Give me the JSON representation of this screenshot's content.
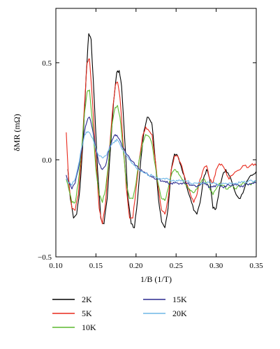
{
  "chart_data": {
    "type": "line",
    "title": "",
    "xlabel": "1/B (1/T)",
    "ylabel": "δMR (mΩ)",
    "xlim": [
      0.1,
      0.35
    ],
    "ylim": [
      -0.5,
      0.78
    ],
    "x_ticks": [
      0.1,
      0.15,
      0.2,
      0.25,
      0.3,
      0.35
    ],
    "x_tick_labels": [
      "0.10",
      "0.15",
      "0.20",
      "0.25",
      "0.30",
      "0.35"
    ],
    "y_ticks": [
      -0.5,
      0.0,
      0.5
    ],
    "y_tick_labels": [
      "−0.5",
      "0.0",
      "0.5"
    ],
    "grid": false,
    "legend_position": "below",
    "series": [
      {
        "name": "2K",
        "color": "#000000",
        "x": [
          0.115,
          0.118,
          0.122,
          0.126,
          0.13,
          0.134,
          0.138,
          0.141,
          0.144,
          0.148,
          0.152,
          0.156,
          0.16,
          0.164,
          0.168,
          0.172,
          0.176,
          0.179,
          0.182,
          0.186,
          0.19,
          0.194,
          0.198,
          0.202,
          0.206,
          0.21,
          0.214,
          0.218,
          0.22,
          0.224,
          0.228,
          0.232,
          0.236,
          0.24,
          0.244,
          0.248,
          0.252,
          0.256,
          0.26,
          0.264,
          0.268,
          0.272,
          0.276,
          0.28,
          0.284,
          0.288,
          0.292,
          0.296,
          0.3,
          0.304,
          0.308,
          0.312,
          0.316,
          0.32,
          0.325,
          0.33,
          0.335,
          0.34,
          0.345,
          0.35
        ],
        "y": [
          -0.05,
          -0.2,
          -0.3,
          -0.28,
          -0.15,
          0.1,
          0.45,
          0.65,
          0.62,
          0.3,
          -0.05,
          -0.3,
          -0.33,
          -0.2,
          0.05,
          0.3,
          0.45,
          0.46,
          0.38,
          0.1,
          -0.2,
          -0.33,
          -0.35,
          -0.2,
          0.0,
          0.15,
          0.22,
          0.2,
          0.18,
          0.0,
          -0.2,
          -0.32,
          -0.35,
          -0.25,
          -0.05,
          0.03,
          0.02,
          -0.03,
          -0.08,
          -0.15,
          -0.2,
          -0.26,
          -0.28,
          -0.22,
          -0.1,
          -0.05,
          -0.1,
          -0.25,
          -0.25,
          -0.15,
          -0.08,
          -0.05,
          -0.08,
          -0.12,
          -0.18,
          -0.2,
          -0.15,
          -0.1,
          -0.08,
          -0.06
        ]
      },
      {
        "name": "5K",
        "color": "#e8291c",
        "x": [
          0.113,
          0.116,
          0.12,
          0.124,
          0.128,
          0.132,
          0.136,
          0.139,
          0.142,
          0.146,
          0.15,
          0.154,
          0.158,
          0.162,
          0.166,
          0.17,
          0.174,
          0.177,
          0.18,
          0.184,
          0.188,
          0.192,
          0.196,
          0.2,
          0.204,
          0.208,
          0.212,
          0.216,
          0.22,
          0.224,
          0.228,
          0.232,
          0.236,
          0.24,
          0.244,
          0.248,
          0.252,
          0.256,
          0.26,
          0.264,
          0.268,
          0.272,
          0.276,
          0.28,
          0.284,
          0.288,
          0.292,
          0.296,
          0.3,
          0.304,
          0.308,
          0.312,
          0.316,
          0.32,
          0.325,
          0.33,
          0.335,
          0.34,
          0.345,
          0.35
        ],
        "y": [
          0.14,
          -0.12,
          -0.25,
          -0.26,
          -0.18,
          0.02,
          0.3,
          0.5,
          0.52,
          0.28,
          0.0,
          -0.25,
          -0.33,
          -0.22,
          0.0,
          0.22,
          0.38,
          0.4,
          0.32,
          0.08,
          -0.15,
          -0.3,
          -0.3,
          -0.15,
          0.0,
          0.12,
          0.17,
          0.15,
          0.13,
          0.0,
          -0.15,
          -0.26,
          -0.28,
          -0.2,
          -0.05,
          0.02,
          0.02,
          -0.02,
          -0.08,
          -0.13,
          -0.18,
          -0.22,
          -0.18,
          -0.1,
          -0.05,
          -0.03,
          -0.1,
          -0.12,
          -0.05,
          -0.02,
          -0.03,
          -0.06,
          -0.1,
          -0.08,
          -0.06,
          -0.05,
          -0.03,
          -0.04,
          -0.02,
          -0.03
        ]
      },
      {
        "name": "10K",
        "color": "#5cb82e",
        "x": [
          0.113,
          0.116,
          0.12,
          0.124,
          0.128,
          0.132,
          0.136,
          0.139,
          0.142,
          0.146,
          0.15,
          0.154,
          0.158,
          0.162,
          0.166,
          0.17,
          0.174,
          0.177,
          0.18,
          0.184,
          0.188,
          0.192,
          0.196,
          0.2,
          0.204,
          0.208,
          0.212,
          0.216,
          0.22,
          0.224,
          0.228,
          0.232,
          0.236,
          0.24,
          0.244,
          0.248,
          0.252,
          0.256,
          0.26,
          0.264,
          0.268,
          0.272,
          0.276,
          0.28,
          0.284,
          0.288,
          0.292,
          0.296,
          0.3,
          0.304,
          0.308,
          0.312,
          0.316,
          0.32,
          0.325,
          0.33,
          0.335,
          0.34,
          0.345,
          0.35
        ],
        "y": [
          -0.1,
          -0.15,
          -0.22,
          -0.22,
          -0.12,
          0.05,
          0.25,
          0.35,
          0.36,
          0.18,
          -0.05,
          -0.18,
          -0.22,
          -0.15,
          0.0,
          0.18,
          0.27,
          0.28,
          0.22,
          0.05,
          -0.12,
          -0.2,
          -0.2,
          -0.12,
          0.0,
          0.08,
          0.13,
          0.12,
          0.08,
          -0.03,
          -0.13,
          -0.2,
          -0.21,
          -0.15,
          -0.08,
          -0.05,
          -0.06,
          -0.09,
          -0.12,
          -0.14,
          -0.16,
          -0.17,
          -0.15,
          -0.12,
          -0.1,
          -0.12,
          -0.15,
          -0.18,
          -0.15,
          -0.12,
          -0.13,
          -0.15,
          -0.14,
          -0.13,
          -0.15,
          -0.13,
          -0.12,
          -0.13,
          -0.12,
          -0.11
        ]
      },
      {
        "name": "15K",
        "color": "#2b2a8f",
        "x": [
          0.113,
          0.116,
          0.12,
          0.124,
          0.128,
          0.132,
          0.136,
          0.139,
          0.142,
          0.146,
          0.15,
          0.154,
          0.158,
          0.162,
          0.166,
          0.17,
          0.174,
          0.177,
          0.18,
          0.184,
          0.188,
          0.192,
          0.196,
          0.2,
          0.204,
          0.208,
          0.212,
          0.216,
          0.22,
          0.224,
          0.228,
          0.232,
          0.236,
          0.24,
          0.244,
          0.248,
          0.252,
          0.256,
          0.26,
          0.264,
          0.268,
          0.272,
          0.276,
          0.28,
          0.284,
          0.288,
          0.292,
          0.296,
          0.3,
          0.304,
          0.308,
          0.312,
          0.316,
          0.32,
          0.325,
          0.33,
          0.335,
          0.34,
          0.345,
          0.35
        ],
        "y": [
          -0.08,
          -0.12,
          -0.15,
          -0.12,
          -0.05,
          0.05,
          0.15,
          0.2,
          0.22,
          0.15,
          0.05,
          -0.02,
          -0.05,
          -0.03,
          0.05,
          0.1,
          0.13,
          0.12,
          0.1,
          0.06,
          0.03,
          0.01,
          -0.01,
          -0.03,
          -0.05,
          -0.06,
          -0.07,
          -0.08,
          -0.09,
          -0.1,
          -0.1,
          -0.11,
          -0.11,
          -0.12,
          -0.12,
          -0.12,
          -0.12,
          -0.12,
          -0.12,
          -0.12,
          -0.13,
          -0.13,
          -0.14,
          -0.13,
          -0.12,
          -0.13,
          -0.14,
          -0.14,
          -0.13,
          -0.13,
          -0.14,
          -0.14,
          -0.13,
          -0.13,
          -0.13,
          -0.14,
          -0.13,
          -0.13,
          -0.12,
          -0.12
        ]
      },
      {
        "name": "20K",
        "color": "#6fb7e6",
        "x": [
          0.113,
          0.116,
          0.12,
          0.124,
          0.128,
          0.132,
          0.136,
          0.139,
          0.142,
          0.146,
          0.15,
          0.154,
          0.158,
          0.162,
          0.166,
          0.17,
          0.174,
          0.177,
          0.18,
          0.184,
          0.188,
          0.192,
          0.196,
          0.2,
          0.204,
          0.208,
          0.212,
          0.216,
          0.22,
          0.224,
          0.228,
          0.232,
          0.236,
          0.24,
          0.244,
          0.248,
          0.252,
          0.256,
          0.26,
          0.264,
          0.268,
          0.272,
          0.276,
          0.28,
          0.284,
          0.288,
          0.292,
          0.296,
          0.3,
          0.304,
          0.308,
          0.312,
          0.316,
          0.32,
          0.325,
          0.33,
          0.335,
          0.34,
          0.345,
          0.35
        ],
        "y": [
          -0.1,
          -0.12,
          -0.13,
          -0.1,
          -0.03,
          0.06,
          0.13,
          0.14,
          0.14,
          0.11,
          0.06,
          0.02,
          0.01,
          0.02,
          0.05,
          0.08,
          0.1,
          0.1,
          0.08,
          0.05,
          0.02,
          0.0,
          -0.02,
          -0.04,
          -0.05,
          -0.06,
          -0.07,
          -0.08,
          -0.08,
          -0.09,
          -0.1,
          -0.1,
          -0.1,
          -0.1,
          -0.11,
          -0.11,
          -0.11,
          -0.11,
          -0.11,
          -0.11,
          -0.12,
          -0.12,
          -0.12,
          -0.12,
          -0.12,
          -0.12,
          -0.12,
          -0.12,
          -0.12,
          -0.13,
          -0.12,
          -0.12,
          -0.12,
          -0.12,
          -0.12,
          -0.12,
          -0.11,
          -0.11,
          -0.11,
          -0.11
        ]
      }
    ]
  }
}
